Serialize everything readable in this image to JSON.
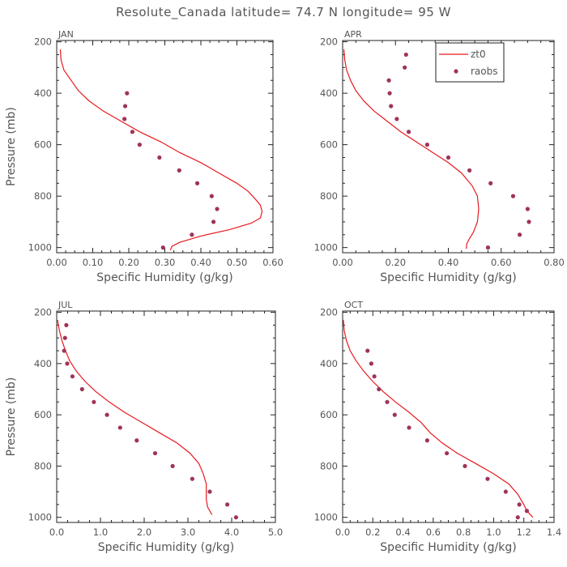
{
  "title": "Resolute_Canada  latitude= 74.7 N longitude= 95 W",
  "legend": {
    "line_label": "zt0",
    "points_label": "raobs",
    "line_color": "#e8191e",
    "point_color": "#a0335a"
  },
  "chart_data": [
    {
      "type": "line",
      "title": "JAN",
      "xlabel": "Specific Humidity (g/kg)",
      "ylabel": "Pressure (mb)",
      "xlim": [
        0,
        0.6
      ],
      "ylim": [
        1020,
        195
      ],
      "xticks": [
        0.0,
        0.1,
        0.2,
        0.3,
        0.4,
        0.5,
        0.6
      ],
      "xtick_labels": [
        "0.00",
        "0.10",
        "0.20",
        "0.30",
        "0.40",
        "0.50",
        "0.60"
      ],
      "yticks": [
        200,
        400,
        600,
        800,
        1000
      ],
      "ytick_labels": [
        "200",
        "400",
        "600",
        "800",
        "1000"
      ],
      "series": [
        {
          "name": "zt0",
          "kind": "line",
          "x": [
            0.01,
            0.012,
            0.02,
            0.04,
            0.06,
            0.09,
            0.13,
            0.18,
            0.23,
            0.29,
            0.34,
            0.4,
            0.45,
            0.5,
            0.53,
            0.55,
            0.565,
            0.57,
            0.565,
            0.54,
            0.48,
            0.4,
            0.34,
            0.32,
            0.315
          ],
          "y": [
            230,
            270,
            310,
            350,
            390,
            430,
            470,
            510,
            550,
            590,
            630,
            670,
            710,
            750,
            780,
            810,
            835,
            860,
            885,
            905,
            930,
            955,
            980,
            995,
            1010
          ]
        },
        {
          "name": "raobs",
          "kind": "points",
          "x": [
            0.195,
            0.19,
            0.188,
            0.21,
            0.23,
            0.285,
            0.34,
            0.39,
            0.43,
            0.445,
            0.435,
            0.375,
            0.295
          ],
          "y": [
            400,
            450,
            500,
            550,
            600,
            650,
            700,
            750,
            800,
            850,
            900,
            950,
            1000
          ]
        }
      ]
    },
    {
      "type": "line",
      "title": "APR",
      "xlabel": "Specific Humidity (g/kg)",
      "ylabel": "",
      "xlim": [
        0,
        0.8
      ],
      "ylim": [
        1020,
        195
      ],
      "xticks": [
        0.0,
        0.2,
        0.4,
        0.6,
        0.8
      ],
      "xtick_labels": [
        "0.00",
        "0.20",
        "0.40",
        "0.60",
        "0.80"
      ],
      "yticks": [
        200,
        400,
        600,
        800,
        1000
      ],
      "ytick_labels": [
        "200",
        "400",
        "600",
        "800",
        "1000"
      ],
      "series": [
        {
          "name": "zt0",
          "kind": "line",
          "x": [
            0.005,
            0.008,
            0.015,
            0.03,
            0.05,
            0.08,
            0.12,
            0.17,
            0.22,
            0.28,
            0.34,
            0.4,
            0.45,
            0.49,
            0.51,
            0.515,
            0.51,
            0.495,
            0.48,
            0.47,
            0.468
          ],
          "y": [
            230,
            270,
            310,
            350,
            390,
            430,
            470,
            510,
            550,
            590,
            630,
            670,
            710,
            760,
            800,
            850,
            900,
            940,
            965,
            985,
            1005
          ]
        },
        {
          "name": "raobs",
          "kind": "points",
          "x": [
            0.24,
            0.235,
            0.175,
            0.178,
            0.183,
            0.205,
            0.25,
            0.32,
            0.4,
            0.48,
            0.56,
            0.645,
            0.7,
            0.705,
            0.67,
            0.55
          ],
          "y": [
            250,
            300,
            350,
            400,
            450,
            500,
            550,
            600,
            650,
            700,
            750,
            800,
            850,
            900,
            950,
            1000
          ]
        }
      ]
    },
    {
      "type": "line",
      "title": "JUL",
      "xlabel": "Specific Humidity (g/kg)",
      "ylabel": "Pressure (mb)",
      "xlim": [
        0,
        5.0
      ],
      "ylim": [
        1020,
        195
      ],
      "xticks": [
        0.0,
        1.0,
        2.0,
        3.0,
        4.0,
        5.0
      ],
      "xtick_labels": [
        "0.0",
        "1.0",
        "2.0",
        "3.0",
        "4.0",
        "5.0"
      ],
      "yticks": [
        200,
        400,
        600,
        800,
        1000
      ],
      "ytick_labels": [
        "200",
        "400",
        "600",
        "800",
        "1000"
      ],
      "series": [
        {
          "name": "zt0",
          "kind": "line",
          "x": [
            0.02,
            0.06,
            0.12,
            0.2,
            0.3,
            0.45,
            0.65,
            0.9,
            1.2,
            1.55,
            1.95,
            2.35,
            2.75,
            3.05,
            3.25,
            3.35,
            3.42,
            3.42,
            3.45,
            3.55
          ],
          "y": [
            230,
            270,
            310,
            350,
            390,
            430,
            470,
            510,
            550,
            590,
            630,
            670,
            710,
            750,
            790,
            830,
            870,
            930,
            960,
            990
          ]
        },
        {
          "name": "raobs",
          "kind": "points",
          "x": [
            0.22,
            0.19,
            0.17,
            0.24,
            0.36,
            0.58,
            0.85,
            1.15,
            1.45,
            1.83,
            2.25,
            2.65,
            3.1,
            3.5,
            3.9,
            4.1
          ],
          "y": [
            250,
            300,
            350,
            400,
            450,
            500,
            550,
            600,
            650,
            700,
            750,
            800,
            850,
            900,
            950,
            1000
          ]
        }
      ]
    },
    {
      "type": "line",
      "title": "OCT",
      "xlabel": "Specific Humidity (g/kg)",
      "ylabel": "",
      "xlim": [
        0,
        1.4
      ],
      "ylim": [
        1020,
        195
      ],
      "xticks": [
        0.0,
        0.2,
        0.4,
        0.6,
        0.8,
        1.0,
        1.2,
        1.4
      ],
      "xtick_labels": [
        "0.0",
        "0.2",
        "0.4",
        "0.6",
        "0.8",
        "1.0",
        "1.2",
        "1.4"
      ],
      "yticks": [
        200,
        400,
        600,
        800,
        1000
      ],
      "ytick_labels": [
        "200",
        "400",
        "600",
        "800",
        "1000"
      ],
      "series": [
        {
          "name": "zt0",
          "kind": "line",
          "x": [
            0.005,
            0.01,
            0.025,
            0.05,
            0.09,
            0.14,
            0.2,
            0.27,
            0.35,
            0.44,
            0.52,
            0.58,
            0.66,
            0.76,
            0.88,
            1.0,
            1.1,
            1.16,
            1.2,
            1.22,
            1.26
          ],
          "y": [
            230,
            270,
            310,
            350,
            390,
            430,
            470,
            510,
            550,
            590,
            630,
            670,
            710,
            750,
            790,
            830,
            870,
            910,
            950,
            975,
            1000
          ]
        },
        {
          "name": "raobs",
          "kind": "points",
          "x": [
            0.165,
            0.19,
            0.21,
            0.24,
            0.295,
            0.345,
            0.44,
            0.56,
            0.69,
            0.81,
            0.96,
            1.08,
            1.17,
            1.22,
            1.16
          ],
          "y": [
            350,
            400,
            450,
            500,
            550,
            600,
            650,
            700,
            750,
            800,
            850,
            900,
            950,
            975,
            1000
          ]
        }
      ]
    }
  ]
}
